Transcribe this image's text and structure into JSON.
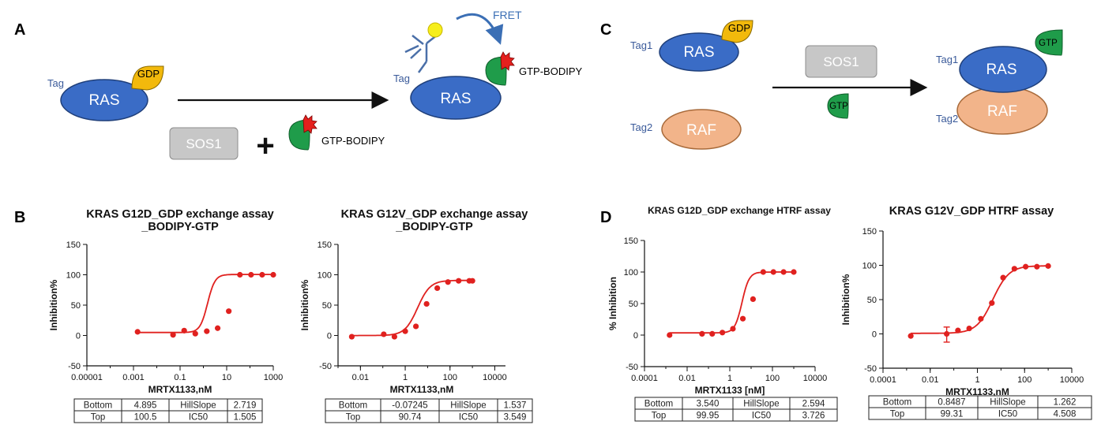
{
  "panel_labels": {
    "a": "A",
    "b": "B",
    "c": "C",
    "d": "D"
  },
  "panel_a": {
    "tag": "Tag",
    "ras": "RAS",
    "gdp": "GDP",
    "sos1": "SOS1",
    "plus": "+",
    "gtp_bodipy": "GTP-BODIPY",
    "fret": "FRET",
    "tag_right": "Tag",
    "ras_right": "RAS",
    "gtp_bodipy_right": "GTP-BODIPY"
  },
  "panel_c": {
    "tag1": "Tag1",
    "tag2": "Tag2",
    "ras": "RAS",
    "raf": "RAF",
    "gdp": "GDP",
    "sos1": "SOS1",
    "gtp": "GTP",
    "tag1_right": "Tag1",
    "tag2_right": "Tag2",
    "ras_right": "RAS",
    "raf_right": "RAF",
    "gtp_right": "GTP"
  },
  "chart_data": [
    {
      "type": "scatter",
      "title": "KRAS G12D_GDP exchange assay",
      "subtitle": "_BODIPY-GTP",
      "xlabel": "MRTX1133,nM",
      "ylabel": "Inhibition%",
      "x_scale": "log",
      "xlim": [
        1e-05,
        1000
      ],
      "ylim": [
        -50,
        150
      ],
      "x_tick_labels": [
        "0.00001",
        "0.001",
        "0.1",
        "10",
        "1000"
      ],
      "y_tick_labels": [
        "150",
        "100",
        "50",
        "0",
        "-50"
      ],
      "points": [
        [
          0.0015,
          6
        ],
        [
          0.05,
          1
        ],
        [
          0.15,
          8
        ],
        [
          0.45,
          3
        ],
        [
          1.4,
          7
        ],
        [
          4.1,
          12
        ],
        [
          12.3,
          40
        ],
        [
          37,
          100
        ],
        [
          111,
          100
        ],
        [
          333,
          100
        ],
        [
          1000,
          100
        ]
      ],
      "fit": {
        "model": "four-parameter logistic",
        "bottom": 4.895,
        "top": 100.5,
        "hillslope": 2.719,
        "ic50": 1.505
      },
      "params_table": [
        [
          "Bottom",
          "4.895",
          "HillSlope",
          "2.719"
        ],
        [
          "Top",
          "100.5",
          "IC50",
          "1.505"
        ]
      ]
    },
    {
      "type": "scatter",
      "title": "KRAS G12V_GDP exchange assay",
      "subtitle": "_BODIPY-GTP",
      "xlabel": "MRTX1133,nM",
      "ylabel": "Inhibition%",
      "x_scale": "log",
      "xlim": [
        0.001,
        30000
      ],
      "ylim": [
        -50,
        150
      ],
      "x_tick_labels": [
        "0.01",
        "1",
        "100",
        "10000"
      ],
      "y_tick_labels": [
        "150",
        "100",
        "50",
        "0",
        "-50"
      ],
      "points": [
        [
          0.0041,
          -2
        ],
        [
          0.11,
          2
        ],
        [
          0.33,
          -2
        ],
        [
          1.0,
          7
        ],
        [
          3.0,
          15
        ],
        [
          9.0,
          52
        ],
        [
          27,
          78
        ],
        [
          81,
          88
        ],
        [
          243,
          90
        ],
        [
          729,
          90
        ],
        [
          1000,
          90
        ]
      ],
      "fit": {
        "model": "four-parameter logistic",
        "bottom": -0.07245,
        "top": 90.74,
        "hillslope": 1.537,
        "ic50": 3.549
      },
      "params_table": [
        [
          "Bottom",
          "-0.07245",
          "HillSlope",
          "1.537"
        ],
        [
          "Top",
          "90.74",
          "IC50",
          "3.549"
        ]
      ]
    },
    {
      "type": "scatter",
      "title": "KRAS G12D_GDP exchange HTRF assay",
      "subtitle": "",
      "xlabel": "MRTX1133 [nM]",
      "ylabel": "% Inhibition",
      "x_scale": "log",
      "xlim": [
        0.0001,
        10000
      ],
      "ylim": [
        -50,
        150
      ],
      "x_tick_labels": [
        "0.0001",
        "0.01",
        "1",
        "100",
        "10000"
      ],
      "y_tick_labels": [
        "150",
        "100",
        "50",
        "0",
        "-50"
      ],
      "points": [
        [
          0.0015,
          0
        ],
        [
          0.05,
          2
        ],
        [
          0.15,
          2
        ],
        [
          0.45,
          4
        ],
        [
          1.4,
          10
        ],
        [
          4.1,
          26
        ],
        [
          12.3,
          57
        ],
        [
          37,
          100
        ],
        [
          111,
          100
        ],
        [
          333,
          100
        ],
        [
          1000,
          100
        ]
      ],
      "fit": {
        "model": "four-parameter logistic",
        "bottom": 3.54,
        "top": 99.95,
        "hillslope": 2.594,
        "ic50": 3.726
      },
      "params_table": [
        [
          "Bottom",
          "3.540",
          "HillSlope",
          "2.594"
        ],
        [
          "Top",
          "99.95",
          "IC50",
          "3.726"
        ]
      ]
    },
    {
      "type": "scatter",
      "title": "KRAS G12V_GDP HTRF assay",
      "subtitle": "",
      "xlabel": "MRTX1133,nM",
      "ylabel": "Inhibition%",
      "x_scale": "log",
      "xlim": [
        0.0001,
        10000
      ],
      "ylim": [
        -50,
        150
      ],
      "x_tick_labels": [
        "0.0001",
        "0.01",
        "1",
        "100",
        "10000"
      ],
      "y_tick_labels": [
        "150",
        "100",
        "50",
        "0",
        "-50"
      ],
      "points": [
        [
          0.0015,
          -3
        ],
        [
          0.05,
          0
        ],
        [
          0.15,
          5
        ],
        [
          0.45,
          8
        ],
        [
          1.4,
          22
        ],
        [
          4.1,
          45
        ],
        [
          12.3,
          82
        ],
        [
          37,
          95
        ],
        [
          111,
          98
        ],
        [
          333,
          98
        ],
        [
          1000,
          99
        ]
      ],
      "error_bars": [
        {
          "x": 0.05,
          "low": -12,
          "high": 10
        }
      ],
      "fit": {
        "model": "four-parameter logistic",
        "bottom": 0.8487,
        "top": 99.31,
        "hillslope": 1.262,
        "ic50": 4.508
      },
      "params_table": [
        [
          "Bottom",
          "0.8487",
          "HillSlope",
          "1.262"
        ],
        [
          "Top",
          "99.31",
          "IC50",
          "4.508"
        ]
      ]
    }
  ],
  "colors": {
    "ras_blue": "#3a6cc6",
    "raf_orange": "#f2b48a",
    "gdp_gold": "#f2b90c",
    "gtp_green": "#1f9c4a",
    "sos_gray": "#c7c7c7",
    "curve_red": "#e0211f",
    "fret_blue": "#3b6fb5",
    "bodipy_red": "#e5201d",
    "fluor_yellow": "#f6ee1c",
    "antibody_blue": "#4a6fa8"
  }
}
